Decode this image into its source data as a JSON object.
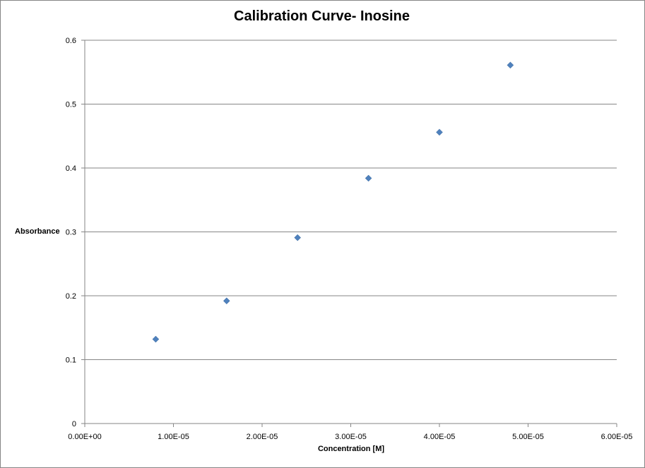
{
  "chart_data": {
    "type": "scatter",
    "title": "Calibration Curve- Inosine",
    "xlabel": "Concentration [M]",
    "ylabel": "Absorbance",
    "xlim": [
      0,
      6e-05
    ],
    "ylim": [
      0,
      0.6
    ],
    "x_ticks": [
      "0.00E+00",
      "1.00E-05",
      "2.00E-05",
      "3.00E-05",
      "4.00E-05",
      "5.00E-05",
      "6.00E-05"
    ],
    "y_ticks": [
      "0",
      "0.1",
      "0.2",
      "0.3",
      "0.4",
      "0.5",
      "0.6"
    ],
    "grid": "horizontal",
    "marker": "diamond",
    "color": "#4F81BD",
    "series": [
      {
        "x": [
          8e-06,
          1.6e-05,
          2.4e-05,
          3.2e-05,
          4e-05,
          4.8e-05
        ],
        "y": [
          0.132,
          0.192,
          0.291,
          0.384,
          0.456,
          0.561
        ]
      }
    ]
  }
}
